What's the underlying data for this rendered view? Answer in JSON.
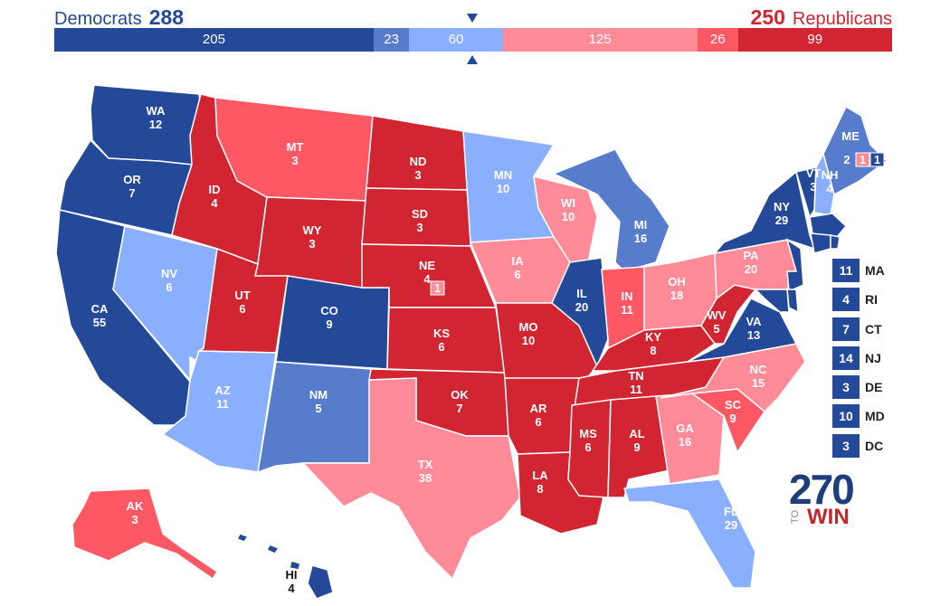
{
  "header": {
    "dem_name": "Democrats",
    "dem_total": "288",
    "rep_total": "250",
    "rep_name": "Republicans"
  },
  "colors": {
    "safe_d": "#244999",
    "likely_d": "#577ccc",
    "lean_d": "#8aafff",
    "lean_r": "#ff8b98",
    "likely_r": "#ff5865",
    "safe_r": "#d22532"
  },
  "bar_segments": [
    {
      "rating": "safe_d",
      "value": 205,
      "label": "205"
    },
    {
      "rating": "likely_d",
      "value": 23,
      "label": "23"
    },
    {
      "rating": "lean_d",
      "value": 60,
      "label": "60"
    },
    {
      "rating": "lean_r",
      "value": 125,
      "label": "125"
    },
    {
      "rating": "likely_r",
      "value": 26,
      "label": "26"
    },
    {
      "rating": "safe_r",
      "value": 99,
      "label": "99"
    }
  ],
  "states": [
    {
      "abbr": "WA",
      "ev": "12",
      "rating": "safe_d"
    },
    {
      "abbr": "OR",
      "ev": "7",
      "rating": "safe_d"
    },
    {
      "abbr": "CA",
      "ev": "55",
      "rating": "safe_d"
    },
    {
      "abbr": "NV",
      "ev": "6",
      "rating": "lean_d"
    },
    {
      "abbr": "ID",
      "ev": "4",
      "rating": "safe_r"
    },
    {
      "abbr": "MT",
      "ev": "3",
      "rating": "likely_r"
    },
    {
      "abbr": "WY",
      "ev": "3",
      "rating": "safe_r"
    },
    {
      "abbr": "UT",
      "ev": "6",
      "rating": "safe_r"
    },
    {
      "abbr": "AZ",
      "ev": "11",
      "rating": "lean_d"
    },
    {
      "abbr": "CO",
      "ev": "9",
      "rating": "safe_d"
    },
    {
      "abbr": "NM",
      "ev": "5",
      "rating": "likely_d"
    },
    {
      "abbr": "ND",
      "ev": "3",
      "rating": "safe_r"
    },
    {
      "abbr": "SD",
      "ev": "3",
      "rating": "safe_r"
    },
    {
      "abbr": "NE",
      "ev": "4",
      "rating": "safe_r"
    },
    {
      "abbr": "KS",
      "ev": "6",
      "rating": "safe_r"
    },
    {
      "abbr": "OK",
      "ev": "7",
      "rating": "safe_r"
    },
    {
      "abbr": "TX",
      "ev": "38",
      "rating": "lean_r"
    },
    {
      "abbr": "MN",
      "ev": "10",
      "rating": "lean_d"
    },
    {
      "abbr": "IA",
      "ev": "6",
      "rating": "lean_r"
    },
    {
      "abbr": "MO",
      "ev": "10",
      "rating": "safe_r"
    },
    {
      "abbr": "AR",
      "ev": "6",
      "rating": "safe_r"
    },
    {
      "abbr": "LA",
      "ev": "8",
      "rating": "safe_r"
    },
    {
      "abbr": "WI",
      "ev": "10",
      "rating": "lean_r"
    },
    {
      "abbr": "IL",
      "ev": "20",
      "rating": "safe_d"
    },
    {
      "abbr": "MI",
      "ev": "16",
      "rating": "likely_d"
    },
    {
      "abbr": "IN",
      "ev": "11",
      "rating": "likely_r"
    },
    {
      "abbr": "OH",
      "ev": "18",
      "rating": "lean_r"
    },
    {
      "abbr": "KY",
      "ev": "8",
      "rating": "safe_r"
    },
    {
      "abbr": "TN",
      "ev": "11",
      "rating": "safe_r"
    },
    {
      "abbr": "MS",
      "ev": "6",
      "rating": "safe_r"
    },
    {
      "abbr": "AL",
      "ev": "9",
      "rating": "safe_r"
    },
    {
      "abbr": "GA",
      "ev": "16",
      "rating": "lean_r"
    },
    {
      "abbr": "FL",
      "ev": "29",
      "rating": "lean_d"
    },
    {
      "abbr": "SC",
      "ev": "9",
      "rating": "likely_r"
    },
    {
      "abbr": "NC",
      "ev": "15",
      "rating": "lean_r"
    },
    {
      "abbr": "VA",
      "ev": "13",
      "rating": "safe_d"
    },
    {
      "abbr": "WV",
      "ev": "5",
      "rating": "safe_r"
    },
    {
      "abbr": "PA",
      "ev": "20",
      "rating": "lean_r"
    },
    {
      "abbr": "NY",
      "ev": "29",
      "rating": "safe_d"
    },
    {
      "abbr": "VT",
      "ev": "3",
      "rating": "safe_d"
    },
    {
      "abbr": "NH",
      "ev": "4",
      "rating": "lean_d"
    },
    {
      "abbr": "ME",
      "ev": "2",
      "rating": "likely_d"
    },
    {
      "abbr": "AK",
      "ev": "3",
      "rating": "likely_r"
    },
    {
      "abbr": "HI",
      "ev": "4",
      "rating": "safe_d"
    }
  ],
  "district_boxes": [
    {
      "id": "ME1",
      "value": "1",
      "rating": "lean_r"
    },
    {
      "id": "ME2",
      "value": "1",
      "rating": "safe_d"
    },
    {
      "id": "NE2",
      "value": "1",
      "rating": "lean_r"
    }
  ],
  "small_states": [
    {
      "abbr": "MA",
      "ev": "11",
      "rating": "safe_d"
    },
    {
      "abbr": "RI",
      "ev": "4",
      "rating": "safe_d"
    },
    {
      "abbr": "CT",
      "ev": "7",
      "rating": "safe_d"
    },
    {
      "abbr": "NJ",
      "ev": "14",
      "rating": "safe_d"
    },
    {
      "abbr": "DE",
      "ev": "3",
      "rating": "safe_d"
    },
    {
      "abbr": "MD",
      "ev": "10",
      "rating": "safe_d"
    },
    {
      "abbr": "DC",
      "ev": "3",
      "rating": "safe_d"
    }
  ],
  "logo": {
    "number": "270",
    "to": "TO",
    "win": "WIN"
  }
}
